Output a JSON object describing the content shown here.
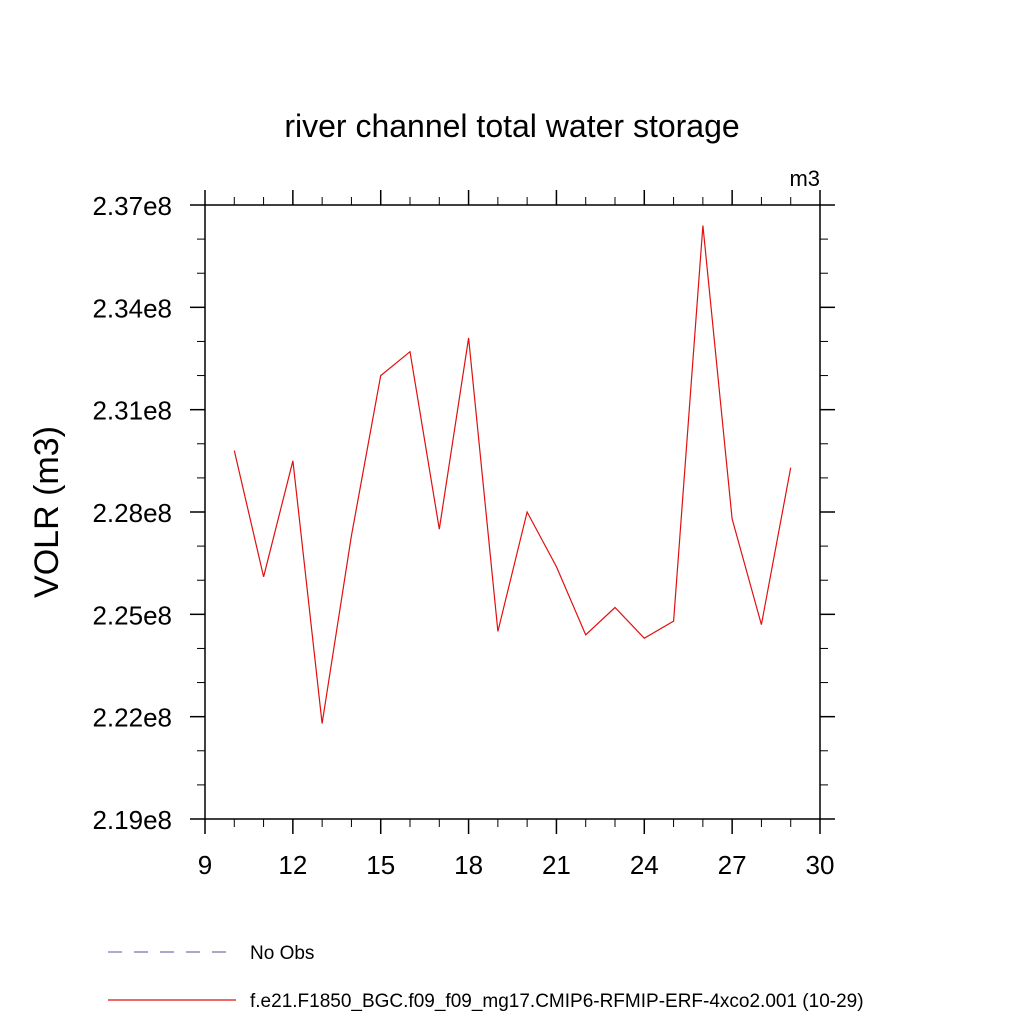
{
  "chart_data": {
    "type": "line",
    "title": "river channel total water storage",
    "units_label": "m3",
    "ylabel": "VOLR  (m3)",
    "xlabel": "",
    "xlim": [
      9,
      30
    ],
    "ylim": [
      219000000,
      237000000
    ],
    "x_ticks": [
      9,
      12,
      15,
      18,
      21,
      24,
      27,
      30
    ],
    "y_ticks": [
      219000000,
      222000000,
      225000000,
      228000000,
      231000000,
      234000000,
      237000000
    ],
    "x_tick_labels": [
      "9",
      "12",
      "15",
      "18",
      "21",
      "24",
      "27",
      "30"
    ],
    "y_tick_labels": [
      "2.19e8",
      "2.22e8",
      "2.25e8",
      "2.28e8",
      "2.31e8",
      "2.34e8",
      "2.37e8"
    ],
    "grid": false,
    "legend_position": "bottom",
    "series": [
      {
        "name": "No Obs",
        "color": "#7f6fae",
        "style": "dashed",
        "x": [],
        "y": []
      },
      {
        "name": "f.e21.F1850_BGC.f09_f09_mg17.CMIP6-RFMIP-ERF-4xco2.001 (10-29)",
        "color": "#e01010",
        "style": "solid",
        "x": [
          10,
          11,
          12,
          13,
          14,
          15,
          16,
          17,
          18,
          19,
          20,
          21,
          22,
          23,
          24,
          25,
          26,
          27,
          28,
          29
        ],
        "y": [
          229800000,
          226100000,
          229500000,
          221800000,
          227300000,
          232000000,
          232700000,
          227500000,
          233100000,
          224500000,
          228000000,
          226400000,
          224400000,
          225200000,
          224300000,
          224800000,
          236400000,
          227800000,
          224700000,
          229300000
        ]
      }
    ]
  }
}
